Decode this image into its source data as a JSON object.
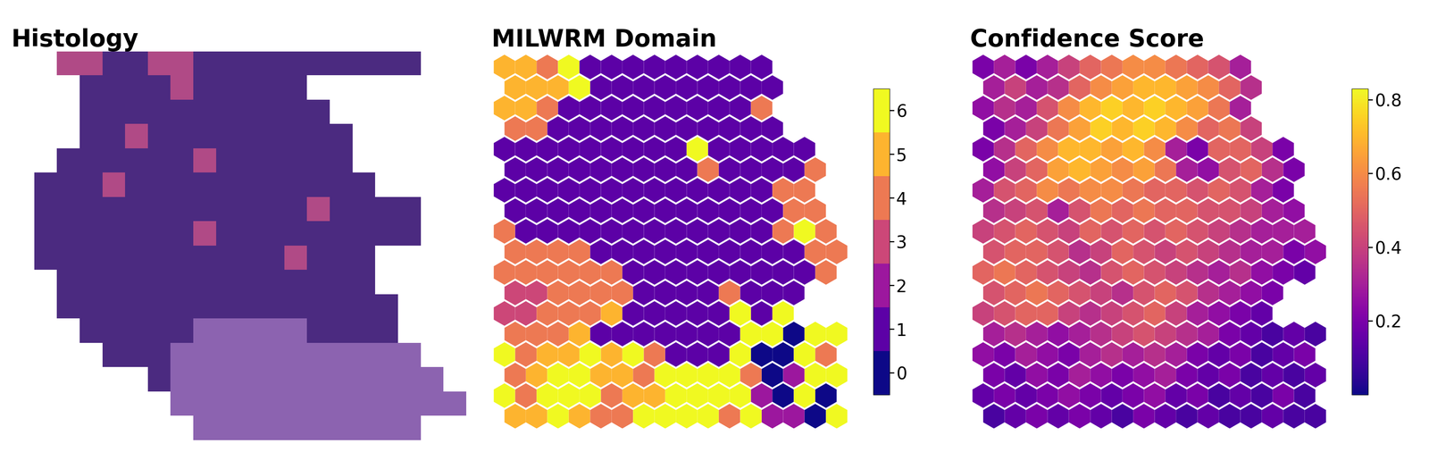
{
  "chart_data": [
    {
      "type": "image",
      "title": "Histology",
      "tick_labels": false,
      "cells": [
        [
          0,
          0,
          2,
          2,
          1,
          1,
          2,
          2,
          1,
          1,
          1,
          1,
          1,
          1,
          1,
          1,
          1,
          1,
          0,
          0
        ],
        [
          0,
          0,
          0,
          1,
          1,
          1,
          1,
          2,
          1,
          1,
          1,
          1,
          1,
          0,
          0,
          0,
          0,
          0,
          0,
          0
        ],
        [
          0,
          0,
          0,
          1,
          1,
          1,
          1,
          1,
          1,
          1,
          1,
          1,
          1,
          1,
          0,
          0,
          0,
          0,
          0,
          0
        ],
        [
          0,
          0,
          0,
          1,
          1,
          2,
          1,
          1,
          1,
          1,
          1,
          1,
          1,
          1,
          1,
          0,
          0,
          0,
          0,
          0
        ],
        [
          0,
          0,
          1,
          1,
          1,
          1,
          1,
          1,
          2,
          1,
          1,
          1,
          1,
          1,
          1,
          0,
          0,
          0,
          0,
          0
        ],
        [
          0,
          1,
          1,
          1,
          2,
          1,
          1,
          1,
          1,
          1,
          1,
          1,
          1,
          1,
          1,
          1,
          0,
          0,
          0,
          0
        ],
        [
          0,
          1,
          1,
          1,
          1,
          1,
          1,
          1,
          1,
          1,
          1,
          1,
          1,
          2,
          1,
          1,
          1,
          1,
          0,
          0
        ],
        [
          0,
          1,
          1,
          1,
          1,
          1,
          1,
          1,
          2,
          1,
          1,
          1,
          1,
          1,
          1,
          1,
          1,
          1,
          0,
          0
        ],
        [
          0,
          1,
          1,
          1,
          1,
          1,
          1,
          1,
          1,
          1,
          1,
          1,
          2,
          1,
          1,
          1,
          0,
          0,
          0,
          0
        ],
        [
          0,
          0,
          1,
          1,
          1,
          1,
          1,
          1,
          1,
          1,
          1,
          1,
          1,
          1,
          1,
          1,
          0,
          0,
          0,
          0
        ],
        [
          0,
          0,
          1,
          1,
          1,
          1,
          1,
          1,
          1,
          1,
          1,
          1,
          1,
          1,
          1,
          1,
          1,
          0,
          0,
          0
        ],
        [
          0,
          0,
          0,
          1,
          1,
          1,
          1,
          1,
          3,
          3,
          3,
          3,
          3,
          1,
          1,
          1,
          1,
          0,
          0,
          0
        ],
        [
          0,
          0,
          0,
          0,
          1,
          1,
          1,
          3,
          3,
          3,
          3,
          3,
          3,
          3,
          3,
          3,
          3,
          3,
          0,
          0
        ],
        [
          0,
          0,
          0,
          0,
          0,
          0,
          1,
          3,
          3,
          3,
          3,
          3,
          3,
          3,
          3,
          3,
          3,
          3,
          3,
          0
        ],
        [
          0,
          0,
          0,
          0,
          0,
          0,
          0,
          3,
          3,
          3,
          3,
          3,
          3,
          3,
          3,
          3,
          3,
          3,
          3,
          3
        ],
        [
          0,
          0,
          0,
          0,
          0,
          0,
          0,
          0,
          3,
          3,
          3,
          3,
          3,
          3,
          3,
          3,
          3,
          3,
          0,
          0
        ]
      ]
    },
    {
      "type": "heatmap",
      "title": "MILWRM Domain",
      "tick_labels": false,
      "colorbar_range": [
        -0.5,
        6.5
      ],
      "colorbar_ticks": [
        0,
        1,
        2,
        3,
        4,
        5,
        6
      ],
      "cells": [
        [
          5,
          5,
          4,
          6,
          1,
          1,
          1,
          1,
          1,
          1,
          1,
          1,
          1
        ],
        [
          5,
          5,
          5,
          6,
          1,
          1,
          1,
          1,
          1,
          1,
          1,
          1,
          1
        ],
        [
          5,
          5,
          4,
          1,
          1,
          1,
          1,
          1,
          1,
          1,
          1,
          1,
          4
        ],
        [
          4,
          4,
          1,
          1,
          1,
          1,
          1,
          1,
          1,
          1,
          1,
          1,
          1
        ],
        [
          1,
          1,
          1,
          1,
          1,
          1,
          1,
          1,
          1,
          6,
          1,
          1,
          1,
          1,
          1
        ],
        [
          1,
          1,
          1,
          1,
          1,
          1,
          1,
          1,
          1,
          4,
          1,
          1,
          1,
          1,
          4
        ],
        [
          1,
          1,
          1,
          1,
          1,
          1,
          1,
          1,
          1,
          1,
          1,
          1,
          1,
          4,
          4
        ],
        [
          1,
          1,
          1,
          1,
          1,
          1,
          1,
          1,
          1,
          1,
          1,
          1,
          1,
          4,
          4
        ],
        [
          4,
          1,
          1,
          1,
          1,
          1,
          1,
          1,
          1,
          1,
          1,
          1,
          1,
          4,
          6,
          4
        ],
        [
          4,
          4,
          4,
          4,
          1,
          1,
          1,
          1,
          1,
          1,
          1,
          1,
          1,
          1,
          4,
          4
        ],
        [
          4,
          4,
          4,
          4,
          4,
          4,
          1,
          1,
          1,
          1,
          1,
          1,
          1,
          1,
          1,
          4
        ],
        [
          3,
          3,
          4,
          4,
          4,
          4,
          1,
          1,
          1,
          1,
          4,
          1,
          1,
          1
        ],
        [
          3,
          3,
          4,
          4,
          4,
          5,
          1,
          1,
          1,
          1,
          1,
          6,
          1,
          6
        ],
        [
          4,
          4,
          4,
          5,
          1,
          1,
          1,
          1,
          1,
          1,
          1,
          6,
          6,
          0,
          6,
          6
        ],
        [
          6,
          4,
          5,
          5,
          6,
          5,
          6,
          4,
          1,
          1,
          1,
          6,
          0,
          0,
          6,
          4
        ],
        [
          4,
          5,
          6,
          6,
          5,
          5,
          4,
          6,
          6,
          6,
          6,
          4,
          0,
          2,
          6,
          6
        ],
        [
          6,
          4,
          6,
          6,
          6,
          4,
          5,
          5,
          6,
          6,
          6,
          6,
          2,
          0,
          6,
          0
        ],
        [
          5,
          5,
          6,
          5,
          4,
          4,
          6,
          6,
          6,
          6,
          4,
          6,
          2,
          2,
          0,
          6
        ]
      ]
    },
    {
      "type": "heatmap",
      "title": "Confidence Score",
      "tick_labels": false,
      "colorbar_range": [
        0.0,
        0.83
      ],
      "colorbar_ticks": [
        0.2,
        0.4,
        0.6,
        0.8
      ],
      "cells": [
        [
          0.2,
          0.3,
          0.2,
          0.3,
          0.4,
          0.5,
          0.55,
          0.6,
          0.6,
          0.55,
          0.5,
          0.45,
          0.3
        ],
        [
          0.3,
          0.4,
          0.3,
          0.35,
          0.5,
          0.6,
          0.65,
          0.7,
          0.7,
          0.65,
          0.6,
          0.5,
          0.35
        ],
        [
          0.25,
          0.35,
          0.3,
          0.45,
          0.6,
          0.7,
          0.75,
          0.7,
          0.75,
          0.7,
          0.65,
          0.55,
          0.3
        ],
        [
          0.2,
          0.3,
          0.4,
          0.55,
          0.65,
          0.75,
          0.7,
          0.75,
          0.7,
          0.6,
          0.5,
          0.55,
          0.4
        ],
        [
          0.2,
          0.35,
          0.5,
          0.6,
          0.7,
          0.7,
          0.65,
          0.7,
          0.6,
          0.3,
          0.2,
          0.5,
          0.5,
          0.4,
          0.2
        ],
        [
          0.25,
          0.4,
          0.5,
          0.65,
          0.7,
          0.65,
          0.6,
          0.65,
          0.55,
          0.3,
          0.25,
          0.45,
          0.5,
          0.35,
          0.2
        ],
        [
          0.3,
          0.45,
          0.5,
          0.6,
          0.55,
          0.6,
          0.6,
          0.55,
          0.5,
          0.5,
          0.45,
          0.5,
          0.45,
          0.3,
          0.2
        ],
        [
          0.35,
          0.4,
          0.45,
          0.3,
          0.45,
          0.55,
          0.5,
          0.55,
          0.5,
          0.5,
          0.45,
          0.45,
          0.4,
          0.3,
          0.25
        ],
        [
          0.4,
          0.45,
          0.5,
          0.45,
          0.4,
          0.5,
          0.45,
          0.5,
          0.45,
          0.5,
          0.45,
          0.4,
          0.35,
          0.3,
          0.3,
          0.3
        ],
        [
          0.45,
          0.5,
          0.5,
          0.45,
          0.35,
          0.4,
          0.5,
          0.45,
          0.4,
          0.45,
          0.4,
          0.35,
          0.3,
          0.3,
          0.2,
          0.25
        ],
        [
          0.5,
          0.55,
          0.5,
          0.45,
          0.4,
          0.35,
          0.45,
          0.5,
          0.45,
          0.4,
          0.35,
          0.3,
          0.35,
          0.25,
          0.2,
          0.15
        ],
        [
          0.45,
          0.5,
          0.55,
          0.5,
          0.45,
          0.4,
          0.35,
          0.45,
          0.5,
          0.45,
          0.35,
          0.3,
          0.25,
          0.2
        ],
        [
          0.4,
          0.45,
          0.5,
          0.5,
          0.4,
          0.35,
          0.4,
          0.45,
          0.5,
          0.4,
          0.3,
          0.25,
          0.2,
          0.15
        ],
        [
          0.3,
          0.35,
          0.3,
          0.25,
          0.3,
          0.35,
          0.4,
          0.45,
          0.4,
          0.35,
          0.3,
          0.2,
          0.15,
          0.1,
          0.15,
          0.1
        ],
        [
          0.25,
          0.2,
          0.3,
          0.25,
          0.2,
          0.3,
          0.35,
          0.3,
          0.35,
          0.3,
          0.2,
          0.15,
          0.2,
          0.1,
          0.15,
          0.2
        ],
        [
          0.2,
          0.15,
          0.25,
          0.2,
          0.3,
          0.25,
          0.2,
          0.25,
          0.3,
          0.2,
          0.15,
          0.2,
          0.1,
          0.15,
          0.1,
          0.15
        ],
        [
          0.15,
          0.2,
          0.15,
          0.2,
          0.25,
          0.2,
          0.15,
          0.2,
          0.25,
          0.15,
          0.2,
          0.1,
          0.15,
          0.1,
          0.2,
          0.1
        ],
        [
          0.1,
          0.15,
          0.2,
          0.15,
          0.2,
          0.15,
          0.1,
          0.2,
          0.15,
          0.1,
          0.15,
          0.1,
          0.1,
          0.15,
          0.1,
          0.1
        ]
      ]
    }
  ]
}
